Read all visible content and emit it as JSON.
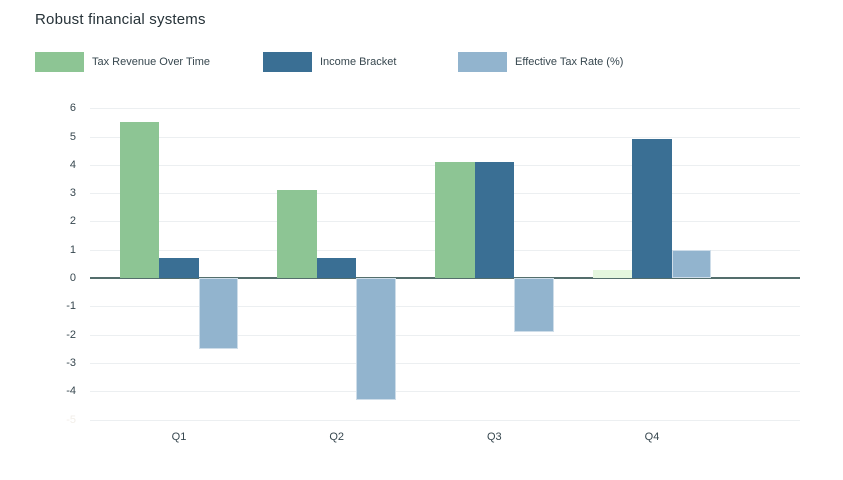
{
  "page": {
    "title": "Robust financial systems",
    "background": "#ffffff"
  },
  "legend": {
    "items": [
      {
        "label": "Tax Revenue Over Time",
        "color": "#8DC594"
      },
      {
        "label": "Income Bracket",
        "color": "#3A6F94"
      },
      {
        "label": "Effective Tax Rate (%)",
        "color": "#92B4CE"
      }
    ]
  },
  "chart_data": {
    "type": "bar",
    "title": "Robust financial systems",
    "categories": [
      "Q1",
      "Q2",
      "Q3",
      "Q4"
    ],
    "series": [
      {
        "name": "Tax Revenue Over Time",
        "color": "#8DC594",
        "values": [
          5.5,
          3.1,
          4.1,
          0.3
        ],
        "point_colors": [
          null,
          null,
          null,
          "#E4F6DE"
        ]
      },
      {
        "name": "Income Bracket",
        "color": "#3A6F94",
        "values": [
          0.7,
          0.7,
          4.1,
          4.9
        ]
      },
      {
        "name": "Effective Tax Rate (%)",
        "color": "#92B4CE",
        "border_color": "rgba(255,255,255,0.55)",
        "values": [
          -2.5,
          -4.3,
          -1.9,
          1.0
        ]
      }
    ],
    "ylim": [
      -5,
      6
    ],
    "yticks": [
      6,
      5,
      4,
      3,
      2,
      1,
      0,
      -1,
      -2,
      -3,
      -4,
      -5
    ],
    "faint_ytick": -5,
    "grid": "horizontal",
    "legend_position": "top",
    "grid_color": "#ECEFF1",
    "zero_line_color": "#546E6C",
    "tick_color": "#37474F",
    "faint_tick_color": "#F2EEE8",
    "title_color": "#263238"
  }
}
